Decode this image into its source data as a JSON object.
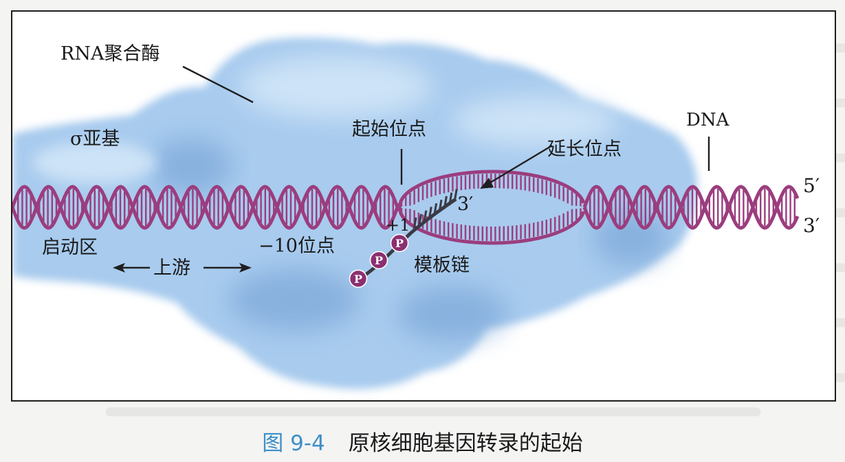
{
  "labels": {
    "rna_polymerase": "RNA聚合酶",
    "sigma_subunit": "σ亚基",
    "start_site": "起始位点",
    "elongation_site": "延长位点",
    "dna": "DNA",
    "five_prime": "5′",
    "three_prime_right": "3′",
    "three_prime_rna": "3′",
    "plus_one": "+1",
    "promoter": "启动区",
    "upstream": "上游",
    "minus_ten_site": "−10位点",
    "template_strand": "模板链",
    "phosphate": "P"
  },
  "caption": {
    "figure_number": "图 9-4",
    "title": "原核细胞基因转录的起始"
  },
  "colors": {
    "dna_strand": "#9b3d7e",
    "rna_strand": "#3a3a44",
    "enzyme_light": "#d2e6f8",
    "enzyme_mid": "#a8cbee",
    "enzyme_dark": "#6e9cd2",
    "phosphate_fill": "#8c2f70",
    "caption_number": "#3d8fc6"
  }
}
